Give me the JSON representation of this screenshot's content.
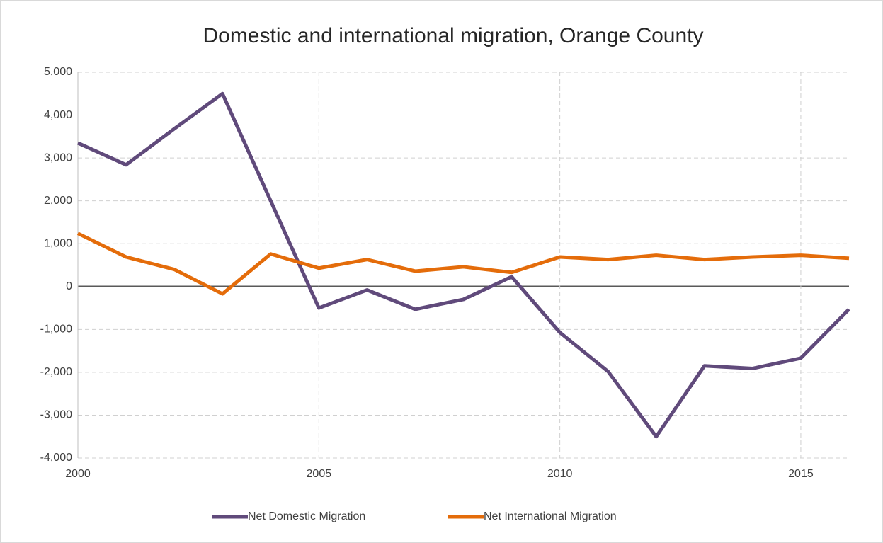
{
  "chart_data": {
    "type": "line",
    "title": "Domestic and international migration, Orange County",
    "x": [
      2000,
      2001,
      2002,
      2003,
      2004,
      2005,
      2006,
      2007,
      2008,
      2009,
      2010,
      2011,
      2012,
      2013,
      2014,
      2015,
      2016
    ],
    "series": [
      {
        "name": "Net Domestic Migration",
        "color": "#604a7b",
        "values": [
          3350,
          2840,
          3680,
          4500,
          2000,
          -500,
          -80,
          -530,
          -300,
          230,
          -1070,
          -1980,
          -3500,
          -1850,
          -1910,
          -1670,
          -530
        ]
      },
      {
        "name": "Net International Migration",
        "color": "#e46c0a",
        "values": [
          1240,
          690,
          400,
          -170,
          760,
          430,
          630,
          360,
          460,
          330,
          690,
          630,
          730,
          630,
          690,
          730,
          660
        ]
      }
    ],
    "xlim": [
      2000,
      2016
    ],
    "xticks": [
      2000,
      2005,
      2010,
      2015
    ],
    "ylim": [
      -4000,
      5000
    ],
    "yticks": [
      {
        "value": -4000,
        "label": "-4,000"
      },
      {
        "value": -3000,
        "label": "-3,000"
      },
      {
        "value": -2000,
        "label": "-2,000"
      },
      {
        "value": -1000,
        "label": "-1,000"
      },
      0,
      {
        "value": 1000,
        "label": "1,000"
      },
      {
        "value": 2000,
        "label": "2,000"
      },
      {
        "value": 3000,
        "label": "3,000"
      },
      {
        "value": 4000,
        "label": "4,000"
      },
      {
        "value": 5000,
        "label": "5,000"
      }
    ],
    "grid": true,
    "legend": "bottom"
  }
}
